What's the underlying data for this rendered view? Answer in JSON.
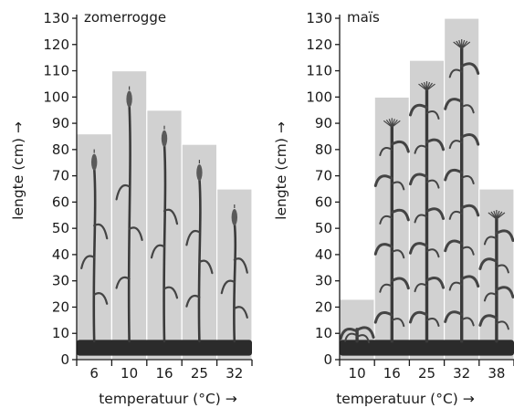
{
  "chart_data": [
    {
      "type": "bar",
      "title": "zomerrogge",
      "categories": [
        "6",
        "10",
        "16",
        "25",
        "32"
      ],
      "values": [
        86,
        110,
        95,
        82,
        65
      ],
      "xlabel": "temperatuur (°C) →",
      "ylabel": "lengte (cm) →",
      "ylim": [
        0,
        130
      ],
      "yticks": [
        "0",
        "10",
        "20",
        "30",
        "40",
        "50",
        "60",
        "70",
        "80",
        "90",
        "100",
        "110",
        "120",
        "130"
      ],
      "plant_icon": "rye-plant-icon"
    },
    {
      "type": "bar",
      "title": "maïs",
      "categories": [
        "10",
        "16",
        "25",
        "32",
        "38"
      ],
      "values": [
        23,
        100,
        114,
        130,
        65
      ],
      "xlabel": "temperatuur (°C) →",
      "ylabel": "lengte (cm) →",
      "ylim": [
        0,
        130
      ],
      "yticks": [
        "0",
        "10",
        "20",
        "30",
        "40",
        "50",
        "60",
        "70",
        "80",
        "90",
        "100",
        "110",
        "120",
        "130"
      ],
      "plant_icon": "maize-plant-icon"
    }
  ],
  "colors": {
    "bar": "#d1d1d1",
    "soil": "#2b2b2b",
    "text": "#1a1a1a"
  }
}
